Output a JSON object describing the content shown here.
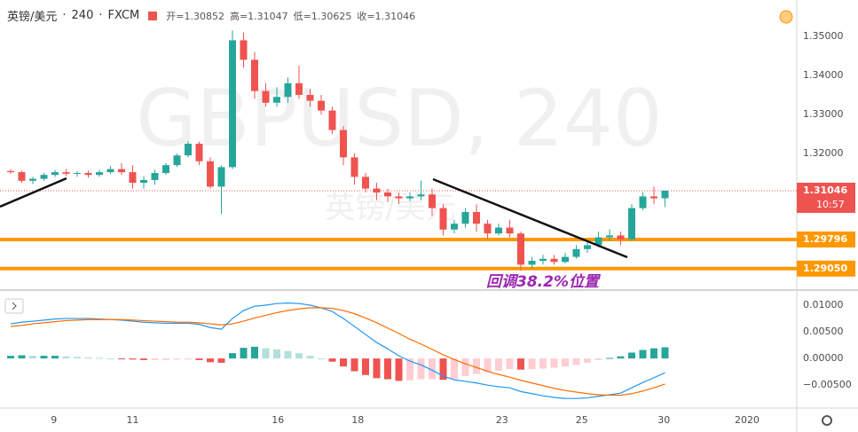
{
  "header": {
    "symbol": "英镑/美元",
    "interval": "240",
    "source": "FXCM",
    "ohlc": [
      {
        "label": "开=",
        "value": "1.30852"
      },
      {
        "label": "高=",
        "value": "1.31047"
      },
      {
        "label": "低=",
        "value": "1.30625"
      },
      {
        "label": "收=",
        "value": "1.31046"
      }
    ]
  },
  "chart_data": [
    {
      "type": "candlestick",
      "watermark": "GBPUSD, 240",
      "watermark_sub": "英镑/美元",
      "annotation": "回调38.2%位置",
      "up_color": "#26a69a",
      "down_color": "#ef5350",
      "ylim": [
        1.28545,
        1.35932
      ],
      "yticks": [
        {
          "value": 1.35,
          "label": "1.35000"
        },
        {
          "value": 1.34,
          "label": "1.34000"
        },
        {
          "value": 1.33,
          "label": "1.33000"
        },
        {
          "value": 1.32,
          "label": "1.32000"
        }
      ],
      "xticks": [
        {
          "value": 3.9,
          "label": "9"
        },
        {
          "value": 11,
          "label": "11"
        },
        {
          "value": 24.1,
          "label": "16"
        },
        {
          "value": 31.3,
          "label": "18"
        },
        {
          "value": 44.3,
          "label": "23"
        },
        {
          "value": 51.5,
          "label": "25"
        },
        {
          "value": 58.9,
          "label": "30"
        },
        {
          "value": 66.4,
          "label": "2020"
        }
      ],
      "last_price": {
        "value": 1.31046,
        "label": "1.31046",
        "countdown": "10:57",
        "color": "#ef5350"
      },
      "levels": [
        {
          "value": 1.29796,
          "label": "1.29796",
          "color": "#ff9800"
        },
        {
          "value": 1.2905,
          "label": "1.29050",
          "color": "#ff9800"
        }
      ],
      "ohlc": [
        [
          1.3155,
          1.316,
          1.3148,
          1.3152
        ],
        [
          1.3152,
          1.3156,
          1.3125,
          1.313
        ],
        [
          1.313,
          1.314,
          1.3122,
          1.3135
        ],
        [
          1.3135,
          1.315,
          1.313,
          1.3145
        ],
        [
          1.3145,
          1.3158,
          1.314,
          1.3152
        ],
        [
          1.3152,
          1.316,
          1.3142,
          1.3148
        ],
        [
          1.3148,
          1.3155,
          1.314,
          1.315
        ],
        [
          1.315,
          1.3156,
          1.3138,
          1.3145
        ],
        [
          1.3145,
          1.3158,
          1.314,
          1.3152
        ],
        [
          1.3152,
          1.3168,
          1.3148,
          1.316
        ],
        [
          1.316,
          1.3175,
          1.3145,
          1.3152
        ],
        [
          1.3152,
          1.317,
          1.311,
          1.3125
        ],
        [
          1.3125,
          1.3142,
          1.311,
          1.3132
        ],
        [
          1.3132,
          1.3158,
          1.312,
          1.315
        ],
        [
          1.315,
          1.3175,
          1.3145,
          1.317
        ],
        [
          1.317,
          1.32,
          1.3165,
          1.3195
        ],
        [
          1.3195,
          1.3232,
          1.319,
          1.3225
        ],
        [
          1.3225,
          1.323,
          1.317,
          1.318
        ],
        [
          1.318,
          1.319,
          1.311,
          1.3115
        ],
        [
          1.3115,
          1.317,
          1.3045,
          1.3165
        ],
        [
          1.3165,
          1.3515,
          1.316,
          1.349
        ],
        [
          1.349,
          1.351,
          1.342,
          1.344
        ],
        [
          1.344,
          1.346,
          1.334,
          1.336
        ],
        [
          1.336,
          1.338,
          1.332,
          1.333
        ],
        [
          1.333,
          1.337,
          1.332,
          1.3345
        ],
        [
          1.3345,
          1.3395,
          1.333,
          1.338
        ],
        [
          1.338,
          1.3425,
          1.334,
          1.335
        ],
        [
          1.335,
          1.3365,
          1.332,
          1.3335
        ],
        [
          1.3335,
          1.335,
          1.33,
          1.331
        ],
        [
          1.331,
          1.332,
          1.325,
          1.326
        ],
        [
          1.326,
          1.327,
          1.317,
          1.319
        ],
        [
          1.319,
          1.32,
          1.312,
          1.314
        ],
        [
          1.314,
          1.315,
          1.31,
          1.311
        ],
        [
          1.311,
          1.3125,
          1.308,
          1.31
        ],
        [
          1.31,
          1.311,
          1.3075,
          1.309
        ],
        [
          1.309,
          1.31,
          1.307,
          1.3085
        ],
        [
          1.3085,
          1.31,
          1.3078,
          1.309
        ],
        [
          1.309,
          1.313,
          1.308,
          1.3095
        ],
        [
          1.3095,
          1.311,
          1.304,
          1.306
        ],
        [
          1.306,
          1.307,
          1.299,
          1.3005
        ],
        [
          1.3005,
          1.303,
          1.2995,
          1.302
        ],
        [
          1.302,
          1.306,
          1.301,
          1.305
        ],
        [
          1.305,
          1.307,
          1.3,
          1.302
        ],
        [
          1.302,
          1.303,
          1.298,
          1.2995
        ],
        [
          1.2995,
          1.302,
          1.299,
          1.301
        ],
        [
          1.301,
          1.303,
          1.2985,
          1.2995
        ],
        [
          1.2995,
          1.3,
          1.29,
          1.2915
        ],
        [
          1.2915,
          1.2935,
          1.2905,
          1.2925
        ],
        [
          1.2925,
          1.294,
          1.2915,
          1.293
        ],
        [
          1.293,
          1.294,
          1.2915,
          1.2922
        ],
        [
          1.2922,
          1.2945,
          1.2918,
          1.2935
        ],
        [
          1.2935,
          1.2965,
          1.293,
          1.2955
        ],
        [
          1.2955,
          1.2975,
          1.2945,
          1.2965
        ],
        [
          1.2965,
          1.3,
          1.296,
          1.2985
        ],
        [
          1.2985,
          1.3005,
          1.2975,
          1.299
        ],
        [
          1.299,
          1.3,
          1.2965,
          1.298
        ],
        [
          1.298,
          1.307,
          1.2975,
          1.306
        ],
        [
          1.306,
          1.31,
          1.3055,
          1.309
        ],
        [
          1.309,
          1.3115,
          1.307,
          1.3085
        ],
        [
          1.30852,
          1.31047,
          1.30625,
          1.31046
        ]
      ]
    },
    {
      "type": "macd",
      "macd_color": "#2196f3",
      "signal_color": "#ff6d00",
      "ylim": [
        -0.0093,
        0.0115
      ],
      "yticks": [
        {
          "value": 0.01,
          "label": "0.01000"
        },
        {
          "value": 0.005,
          "label": "0.00500"
        },
        {
          "value": 0,
          "label": "0.00000"
        },
        {
          "value": -0.005,
          "label": "−0.00500"
        }
      ],
      "macd": [
        0.0065,
        0.0068,
        0.007,
        0.0072,
        0.0074,
        0.0075,
        0.0075,
        0.0075,
        0.0074,
        0.0073,
        0.0072,
        0.007,
        0.0068,
        0.0067,
        0.0066,
        0.0066,
        0.0066,
        0.0064,
        0.0058,
        0.0055,
        0.0075,
        0.009,
        0.0098,
        0.01,
        0.0103,
        0.0104,
        0.0103,
        0.01,
        0.0095,
        0.0088,
        0.0075,
        0.006,
        0.0045,
        0.003,
        0.0018,
        0.0005,
        -0.0005,
        -0.0012,
        -0.0022,
        -0.0033,
        -0.004,
        -0.0043,
        -0.0046,
        -0.005,
        -0.0053,
        -0.0055,
        -0.0062,
        -0.0066,
        -0.007,
        -0.0073,
        -0.0075,
        -0.0075,
        -0.0074,
        -0.0071,
        -0.0068,
        -0.0065,
        -0.0055,
        -0.0045,
        -0.0036,
        -0.0027
      ],
      "signal": [
        0.006,
        0.0062,
        0.0065,
        0.0067,
        0.0069,
        0.0071,
        0.0072,
        0.0073,
        0.0073,
        0.0073,
        0.0073,
        0.0072,
        0.0071,
        0.007,
        0.0069,
        0.0068,
        0.0068,
        0.0067,
        0.0065,
        0.0063,
        0.0065,
        0.007,
        0.0076,
        0.0081,
        0.0086,
        0.009,
        0.0093,
        0.0095,
        0.0095,
        0.0094,
        0.009,
        0.0084,
        0.0076,
        0.0067,
        0.0057,
        0.0047,
        0.0036,
        0.0027,
        0.0017,
        0.0007,
        -0.0002,
        -0.001,
        -0.0017,
        -0.0024,
        -0.003,
        -0.0035,
        -0.0041,
        -0.0046,
        -0.0051,
        -0.0056,
        -0.006,
        -0.0063,
        -0.0066,
        -0.0068,
        -0.0069,
        -0.0069,
        -0.0066,
        -0.0061,
        -0.0055,
        -0.0048
      ],
      "histogram": [
        0.0005,
        0.0006,
        0.0005,
        0.0005,
        0.0005,
        0.0004,
        0.0003,
        0.0002,
        0.0001,
        0,
        -0.0001,
        -0.0002,
        -0.0003,
        -0.0003,
        -0.0003,
        -0.0002,
        -0.0002,
        -0.0003,
        -0.0007,
        -0.0008,
        0.001,
        0.002,
        0.0022,
        0.0019,
        0.0017,
        0.0014,
        0.001,
        0.0005,
        0,
        -0.0006,
        -0.0015,
        -0.0024,
        -0.0031,
        -0.0037,
        -0.0039,
        -0.0042,
        -0.0041,
        -0.0039,
        -0.0039,
        -0.004,
        -0.0038,
        -0.0033,
        -0.0029,
        -0.0026,
        -0.0023,
        -0.002,
        -0.0021,
        -0.002,
        -0.0019,
        -0.0017,
        -0.0015,
        -0.0012,
        -0.0008,
        -0.0003,
        0.0001,
        0.0004,
        0.0011,
        0.0016,
        0.0019,
        0.0021
      ]
    }
  ]
}
